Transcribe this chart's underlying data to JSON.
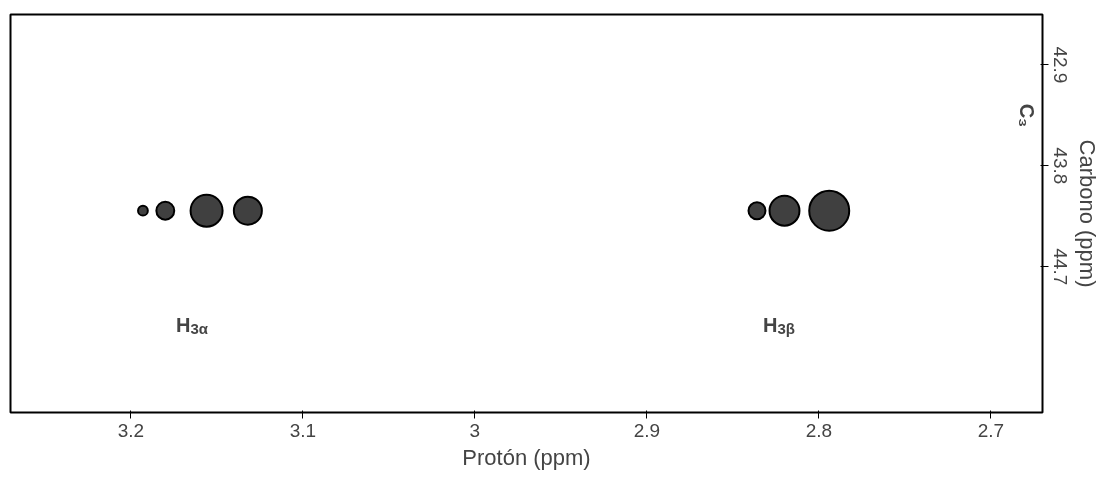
{
  "chart_data": {
    "type": "bubble",
    "xlabel": "Protón (ppm)",
    "ylabel": "Carbono (ppm)",
    "x": [
      3.193,
      3.18,
      3.156,
      3.132,
      2.836,
      2.82,
      2.794
    ],
    "values": [
      44.2,
      44.2,
      44.2,
      44.2,
      44.2,
      44.2,
      44.2
    ],
    "sizes": [
      0.06,
      0.2,
      0.64,
      0.49,
      0.18,
      0.56,
      1
    ],
    "color": "#000000",
    "xlim": [
      3.27,
      2.67
    ],
    "xticks": [
      3.2,
      3.1,
      3.0,
      2.9,
      2.8,
      2.7
    ],
    "ylim": [
      46.0,
      42.45
    ],
    "yticks": [
      42.9,
      43.8,
      44.7
    ],
    "grid": false,
    "annotations": [
      "H$_{3α}$",
      "H$_{3β}$",
      "C₃"
    ]
  }
}
